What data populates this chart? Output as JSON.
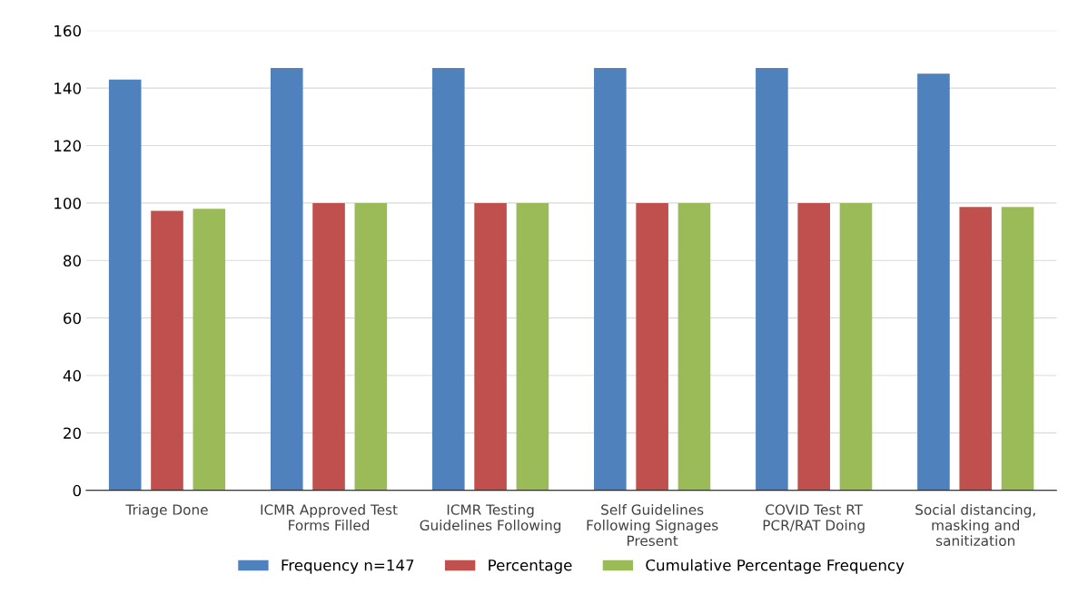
{
  "chart_data": {
    "type": "bar",
    "categories": [
      "Triage Done",
      "ICMR Approved Test Forms Filled",
      "ICMR Testing Guidelines Following",
      "Self Guidelines Following Signages Present",
      "COVID Test RT PCR/RAT Doing",
      "Social distancing, masking and sanitization"
    ],
    "series": [
      {
        "name": "Frequency n=147",
        "color": "#4f81bd",
        "values": [
          143,
          147,
          147,
          147,
          147,
          145
        ]
      },
      {
        "name": "Percentage",
        "color": "#c0504d",
        "values": [
          97.3,
          100,
          100,
          100,
          100,
          98.6
        ]
      },
      {
        "name": "Cumulative Percentage Frequency",
        "color": "#9bbb59",
        "values": [
          98,
          100,
          100,
          100,
          100,
          98.6
        ]
      }
    ],
    "ylim": [
      0,
      160
    ],
    "yticks": [
      0,
      20,
      40,
      60,
      80,
      100,
      120,
      140,
      160
    ],
    "grid": "y",
    "legend": "bottom"
  }
}
